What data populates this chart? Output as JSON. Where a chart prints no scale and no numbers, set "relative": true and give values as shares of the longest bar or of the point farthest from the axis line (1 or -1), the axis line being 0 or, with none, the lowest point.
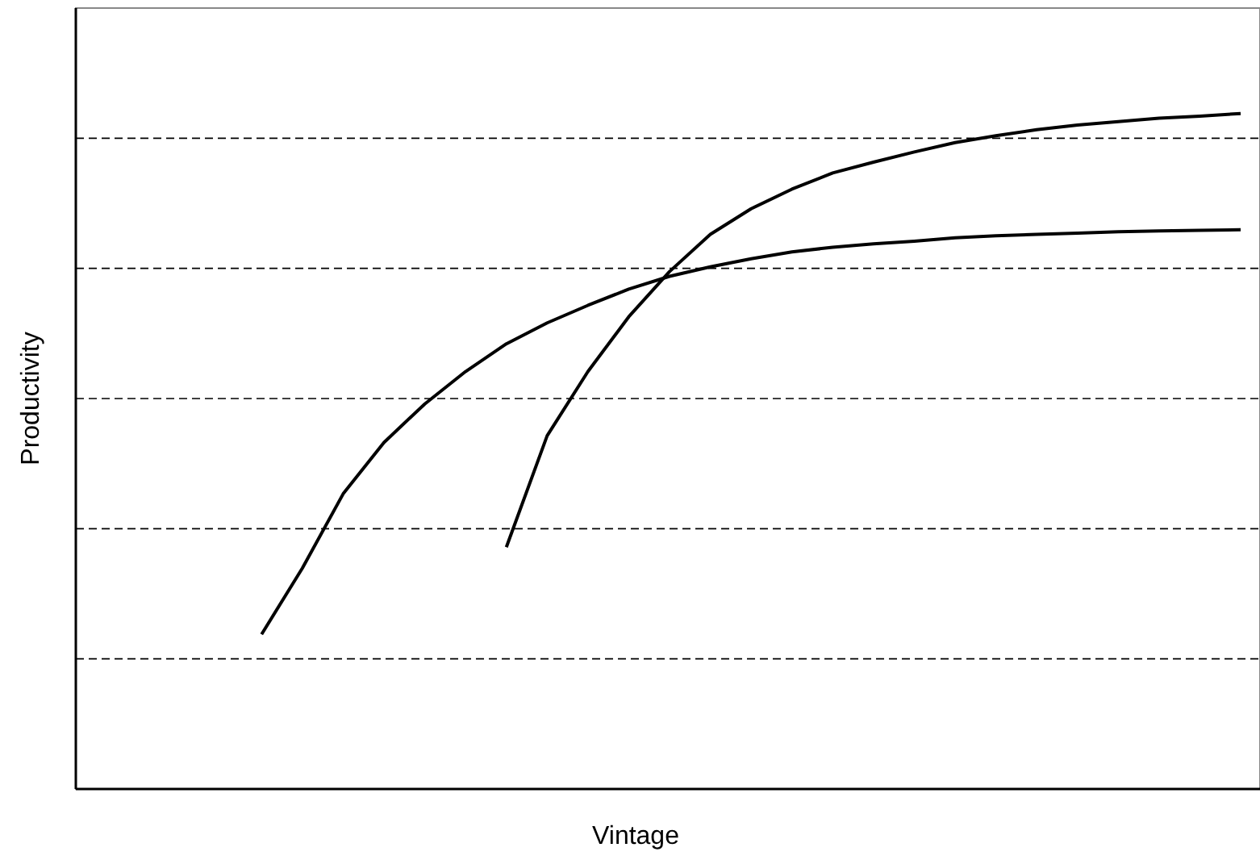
{
  "chart_data": {
    "type": "line",
    "xlabel": "Vintage",
    "ylabel": "Productivity",
    "relative": true,
    "grid": "y",
    "marker": "none",
    "line_style": "solid",
    "categories": [
      null,
      null,
      null,
      null,
      null,
      null,
      null,
      null,
      null,
      null,
      null,
      null,
      null,
      null,
      null,
      null,
      null,
      null,
      null,
      null,
      null,
      null,
      null,
      null,
      null,
      null,
      null,
      null,
      null
    ],
    "series": [
      {
        "color": "#000000",
        "values": [
          null,
          null,
          null,
          null,
          0.229,
          0.327,
          0.437,
          0.513,
          0.57,
          0.618,
          0.659,
          0.69,
          0.716,
          0.74,
          0.759,
          0.773,
          0.785,
          0.795,
          0.802,
          0.807,
          0.811,
          0.816,
          0.819,
          0.821,
          0.823,
          0.825,
          0.826,
          0.827,
          0.828
        ]
      },
      {
        "color": "#000000",
        "values": [
          null,
          null,
          null,
          null,
          null,
          null,
          null,
          null,
          null,
          null,
          0.358,
          0.523,
          0.618,
          0.699,
          0.766,
          0.821,
          0.859,
          0.888,
          0.912,
          0.928,
          0.943,
          0.957,
          0.967,
          0.976,
          0.983,
          0.988,
          0.993,
          0.996,
          1
        ]
      }
    ]
  }
}
